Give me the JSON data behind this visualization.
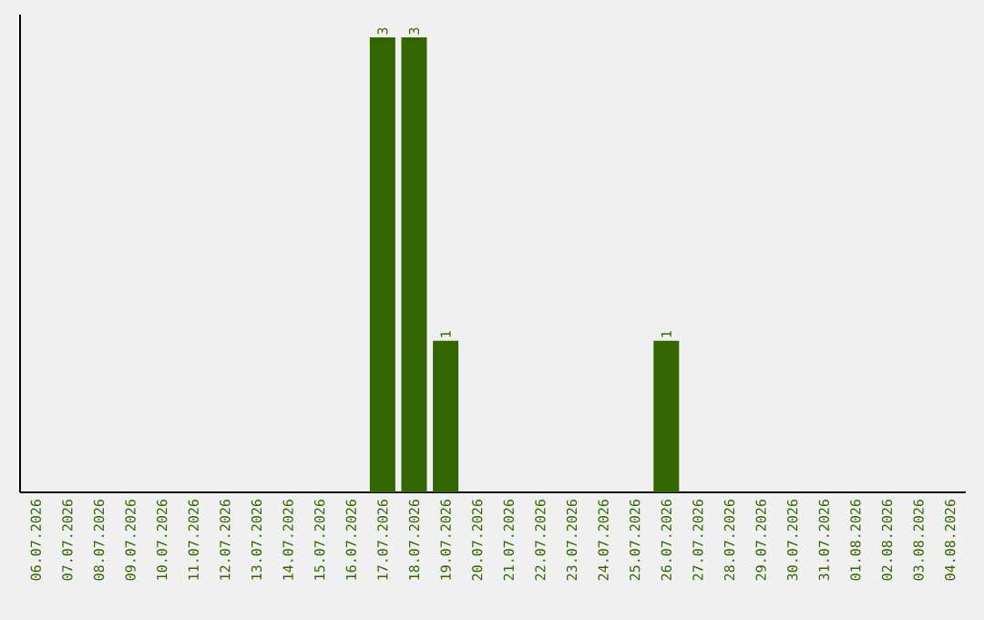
{
  "chart_data": {
    "type": "bar",
    "categories": [
      "06.07.2026",
      "07.07.2026",
      "08.07.2026",
      "09.07.2026",
      "10.07.2026",
      "11.07.2026",
      "12.07.2026",
      "13.07.2026",
      "14.07.2026",
      "15.07.2026",
      "16.07.2026",
      "17.07.2026",
      "18.07.2026",
      "19.07.2026",
      "20.07.2026",
      "21.07.2026",
      "22.07.2026",
      "23.07.2026",
      "24.07.2026",
      "25.07.2026",
      "26.07.2026",
      "27.07.2026",
      "28.07.2026",
      "29.07.2026",
      "30.07.2026",
      "31.07.2026",
      "01.08.2026",
      "02.08.2026",
      "03.08.2026",
      "04.08.2026"
    ],
    "values": [
      0,
      0,
      0,
      0,
      0,
      0,
      0,
      0,
      0,
      0,
      0,
      3,
      3,
      1,
      0,
      0,
      0,
      0,
      0,
      0,
      1,
      0,
      0,
      0,
      0,
      0,
      0,
      0,
      0,
      0
    ],
    "value_labels": [
      null,
      null,
      null,
      null,
      null,
      null,
      null,
      null,
      null,
      null,
      null,
      "3",
      "3",
      "1",
      null,
      null,
      null,
      null,
      null,
      null,
      "1",
      null,
      null,
      null,
      null,
      null,
      null,
      null,
      null,
      null
    ],
    "color": "#336600",
    "tick_labels": "x"
  }
}
